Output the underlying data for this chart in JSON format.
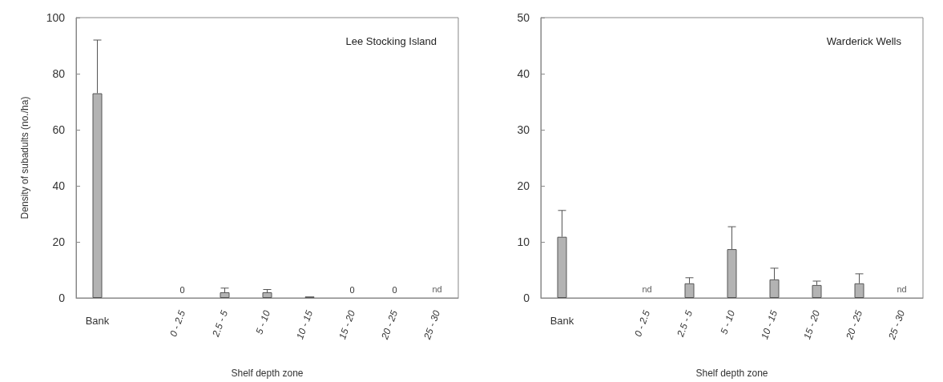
{
  "chart_data": [
    {
      "type": "bar",
      "title": "Lee Stocking Island",
      "xlabel": "Shelf depth zone",
      "ylabel": "Density of subadults (no./ha)",
      "categories": [
        "Bank",
        null,
        "0 - 2.5",
        "2.5 - 5",
        "5 - 10",
        "10 - 15",
        "15 - 20",
        "20 - 25",
        "25 - 30"
      ],
      "values": [
        73,
        null,
        0,
        2,
        2,
        0.5,
        0,
        0,
        null
      ],
      "errors": [
        [
          73,
          92
        ],
        null,
        null,
        [
          2,
          3.5
        ],
        [
          2,
          3
        ],
        null,
        null,
        null,
        null
      ],
      "value_labels": [
        null,
        null,
        "0",
        null,
        null,
        null,
        "0",
        "0",
        "nd"
      ],
      "color": "#b3b3b3",
      "ylim": [
        0,
        100
      ],
      "yticks": [
        0,
        20,
        40,
        60,
        80,
        100
      ],
      "grid": false
    },
    {
      "type": "bar",
      "title": "Warderick Wells",
      "xlabel": "Shelf depth zone",
      "categories": [
        "Bank",
        null,
        "0 - 2.5",
        "2.5 - 5",
        "5 - 10",
        "10 - 15",
        "15 - 20",
        "20 - 25",
        "25 - 30"
      ],
      "values": [
        10.9,
        null,
        null,
        2.6,
        8.7,
        3.3,
        2.3,
        2.6,
        null
      ],
      "errors": [
        [
          10.9,
          15.6
        ],
        null,
        null,
        [
          2.6,
          3.6
        ],
        [
          8.7,
          12.7
        ],
        [
          3.3,
          5.3
        ],
        [
          2.3,
          3
        ],
        [
          2.6,
          4.3
        ],
        null
      ],
      "value_labels": [
        null,
        null,
        "nd",
        null,
        null,
        null,
        null,
        null,
        "nd"
      ],
      "color": "#b3b3b3",
      "ylim": [
        0,
        50
      ],
      "yticks": [
        0,
        10,
        20,
        30,
        40,
        50
      ],
      "grid": false
    }
  ]
}
